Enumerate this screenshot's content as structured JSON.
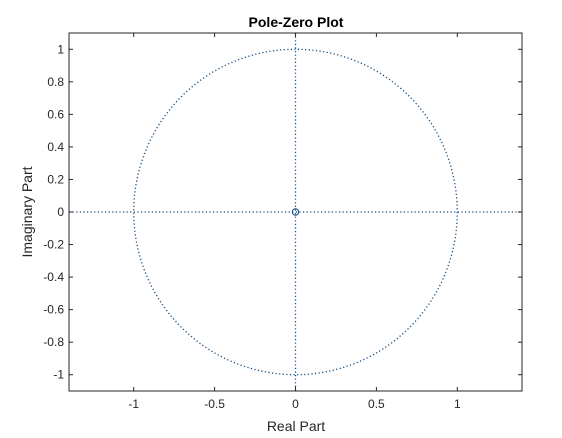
{
  "chart_data": {
    "type": "scatter",
    "title": "Pole-Zero Plot",
    "xlabel": "Real Part",
    "ylabel": "Imaginary Part",
    "xlim": [
      -1.4,
      1.4
    ],
    "ylim": [
      -1.1,
      1.1
    ],
    "x_ticks": [
      -1,
      -0.5,
      0,
      0.5,
      1
    ],
    "x_tick_labels": [
      "-1",
      "-0.5",
      "0",
      "0.5",
      "1"
    ],
    "y_ticks": [
      1,
      0.8,
      0.6,
      0.4,
      0.2,
      0,
      -0.2,
      -0.4,
      -0.6,
      -0.8,
      -1
    ],
    "y_tick_labels": [
      "1",
      "0.8",
      "0.6",
      "0.4",
      "0.2",
      "0",
      "-0.2",
      "-0.4",
      "-0.6",
      "-0.8",
      "-1"
    ],
    "grid": false,
    "unit_circle": {
      "center": [
        0,
        0
      ],
      "radius": 1
    },
    "zeros": [
      {
        "x": 0,
        "y": 0
      }
    ],
    "poles": [],
    "colors": {
      "marks": "#0f4c81",
      "axes": "#262626"
    }
  }
}
